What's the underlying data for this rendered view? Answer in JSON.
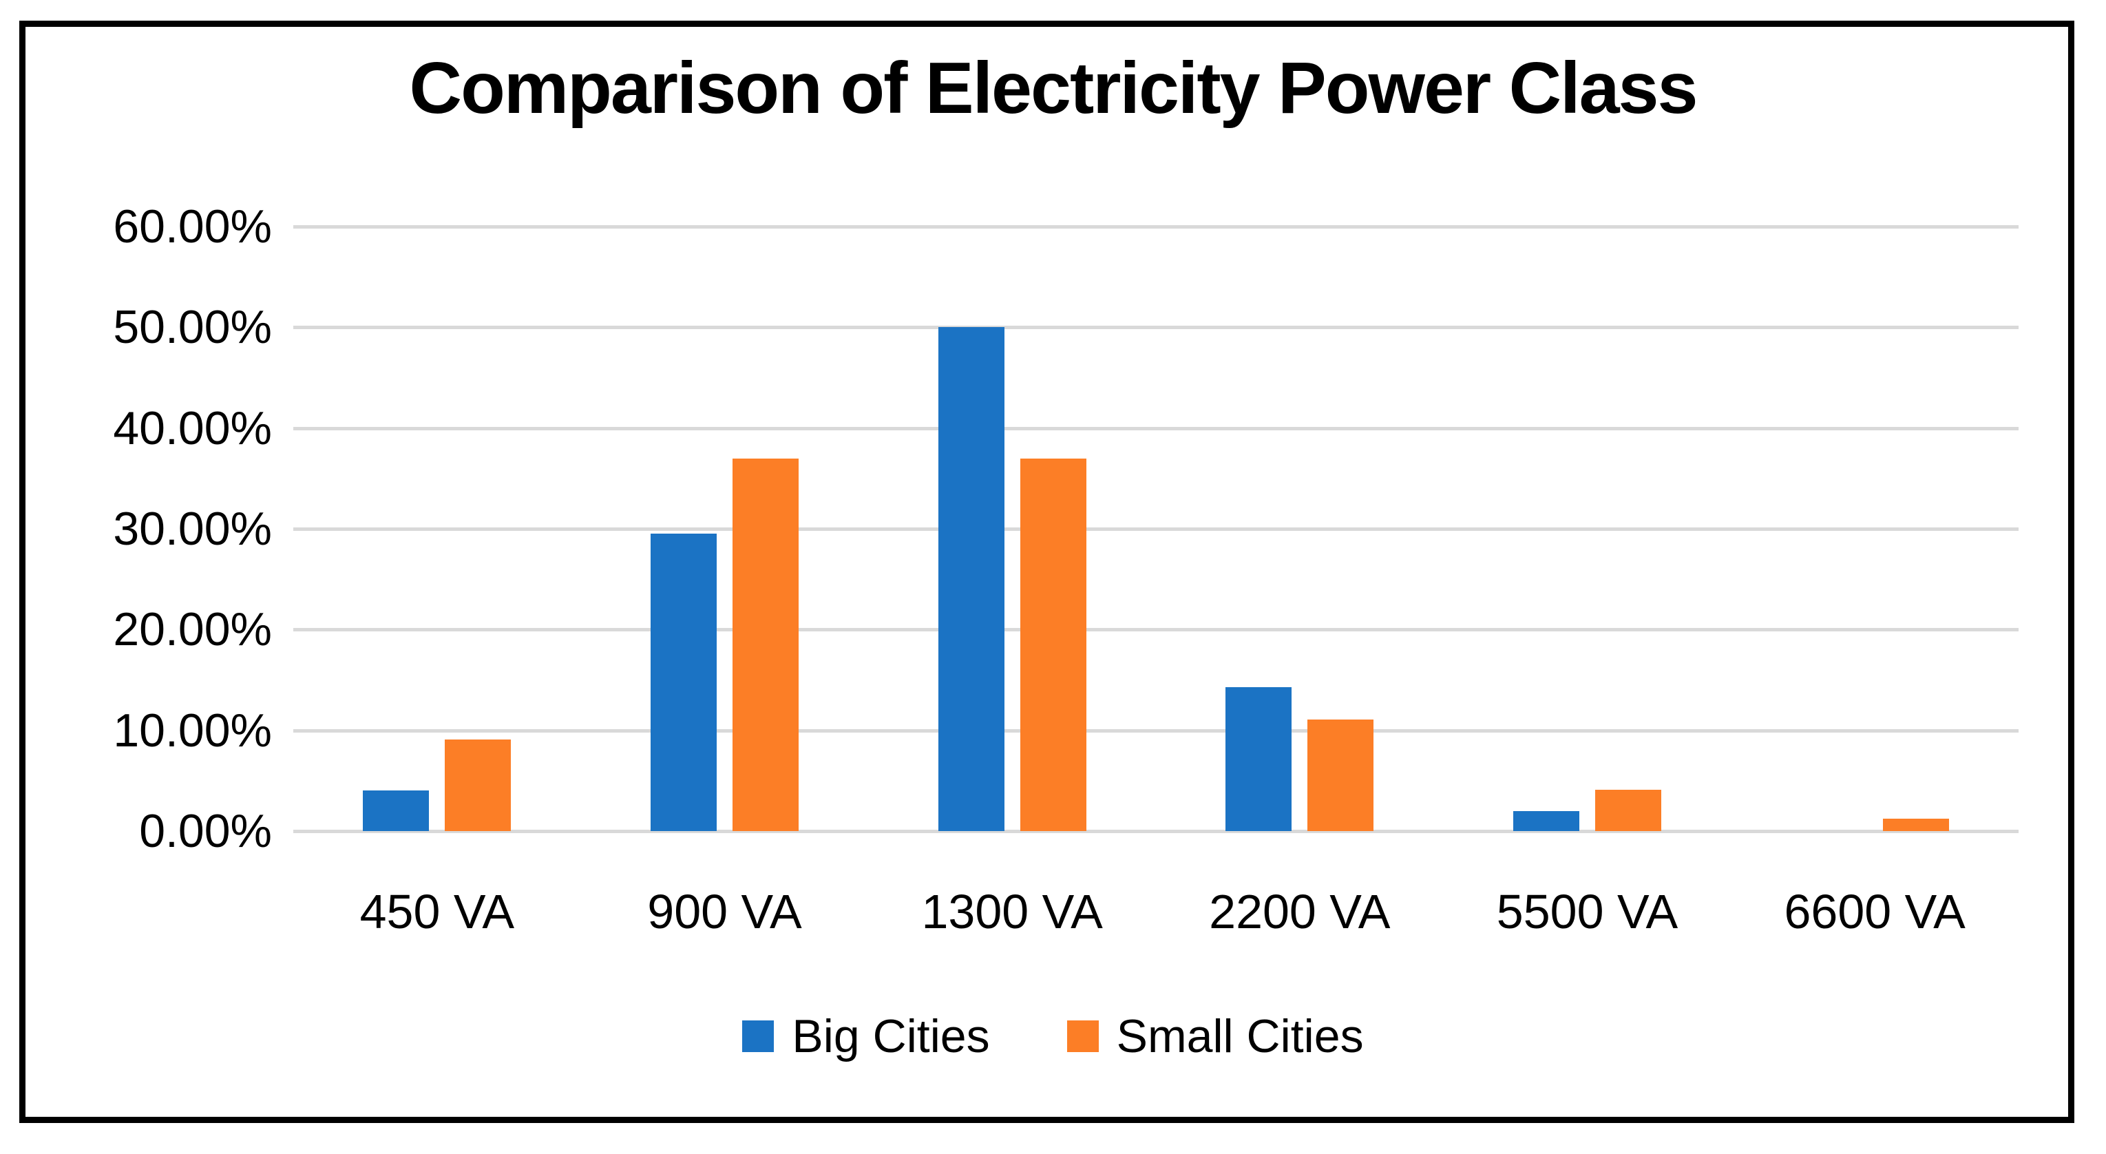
{
  "title": "Comparison of Electricity Power Class",
  "chart_data": {
    "type": "bar",
    "title": "Comparison of Electricity Power Class",
    "categories": [
      "450 VA",
      "900 VA",
      "1300 VA",
      "2200 VA",
      "5500 VA",
      "6600 VA"
    ],
    "series": [
      {
        "name": "Big Cities",
        "color": "#1B73C4",
        "values": [
          4.0,
          29.5,
          50.0,
          14.3,
          2.0,
          0.0
        ]
      },
      {
        "name": "Small Cities",
        "color": "#FC7E26",
        "values": [
          9.1,
          37.0,
          37.0,
          11.1,
          4.1,
          1.2
        ]
      }
    ],
    "xlabel": "",
    "ylabel": "",
    "ylim": [
      0,
      60
    ],
    "y_tick_labels": [
      "0.00%",
      "10.00%",
      "20.00%",
      "30.00%",
      "40.00%",
      "50.00%",
      "60.00%"
    ],
    "y_tick_step_percent": 10,
    "grid": "horizontal",
    "gridline_color": "#D9D9D9",
    "legend_position": "bottom",
    "frame_border_color": "#000000",
    "background_color": "#FFFFFF"
  }
}
